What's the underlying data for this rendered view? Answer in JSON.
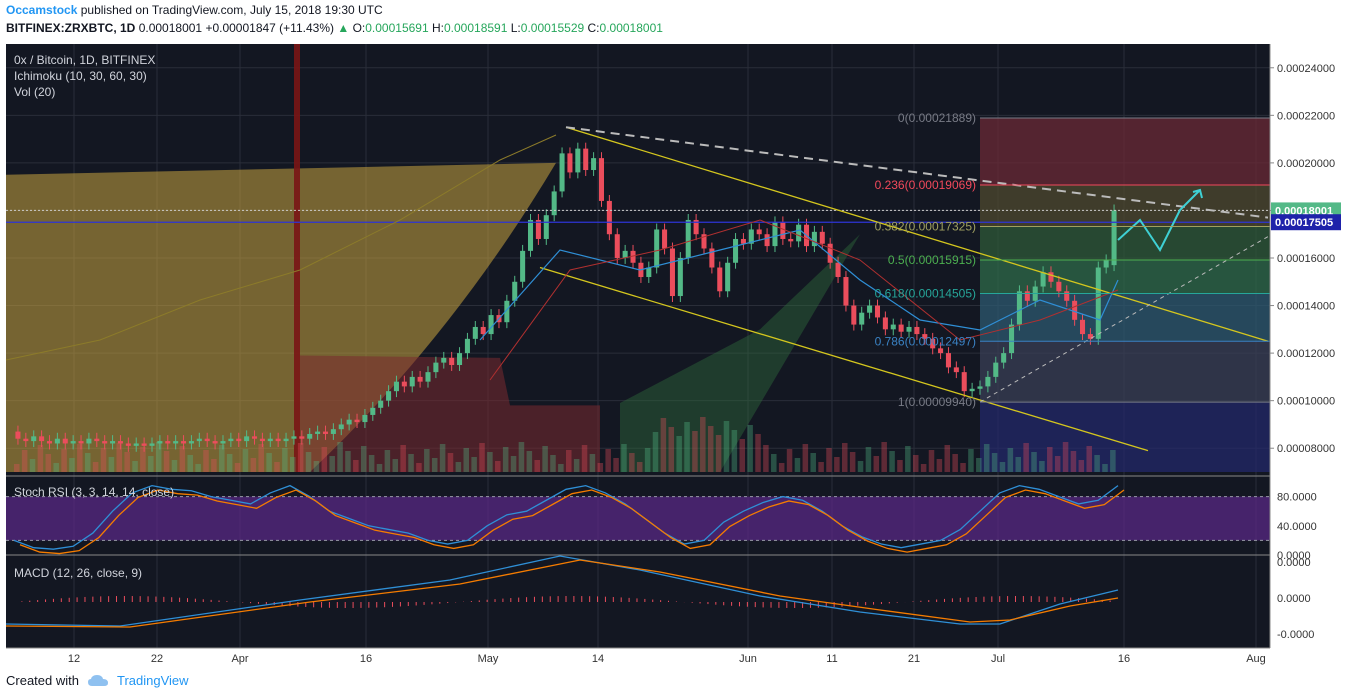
{
  "header": {
    "author": "Occamstock",
    "published_text": "published on TradingView.com, July 15, 2018 19:30 UTC",
    "symbol": "BITFINEX:ZRXBTC, 1D",
    "last": "0.00018001",
    "change": "+0.00001847 (+11.43%)",
    "o_label": "O:",
    "o": "0.00015691",
    "h_label": "H:",
    "h": "0.00018591",
    "l_label": "L:",
    "l": "0.00015529",
    "c_label": "C:",
    "c": "0.00018001"
  },
  "legend": {
    "line1": "0x / Bitcoin, 1D, BITFINEX",
    "line2": "Ichimoku (10, 30, 60, 30)",
    "line3": "Vol (20)",
    "stoch": "Stoch RSI (3, 3, 14, 14, close)",
    "macd": "MACD (12, 26, close, 9)"
  },
  "footer": {
    "created_with": "Created with",
    "brand": "TradingView"
  },
  "colors": {
    "bg": "#131722",
    "grid": "#2a2e39",
    "up": "#53b987",
    "down": "#eb4d5c",
    "fib_red": "#f2495b",
    "fib_green": "#26a65b"
  },
  "chart_data": {
    "type": "candlestick",
    "price_axis": {
      "ticks": [
        "0.00024000",
        "0.00022000",
        "0.00020000",
        "0.00018000",
        "0.00016000",
        "0.00014000",
        "0.00012000",
        "0.00010000",
        "0.00008000"
      ],
      "range": [
        7e-05,
        0.00025
      ]
    },
    "price_tags": [
      {
        "value": "0.00018001",
        "price": 0.00018001,
        "color": "#53b987"
      },
      {
        "value": "0.00017505",
        "price": 0.00017505,
        "color": "#1e22aa"
      }
    ],
    "x_labels": [
      "12",
      "22",
      "Apr",
      "16",
      "May",
      "14",
      "Jun",
      "11",
      "21",
      "Jul",
      "16",
      "Aug"
    ],
    "fib_levels": [
      {
        "label": "0(0.00021889)",
        "price": 0.00021889,
        "color": "#787b86"
      },
      {
        "label": "0.236(0.00019069)",
        "price": 0.00019069,
        "color": "#f2495b"
      },
      {
        "label": "0.382(0.00017325)",
        "price": 0.00017325,
        "color": "#a0a060"
      },
      {
        "label": "0.5(0.00015915)",
        "price": 0.00015915,
        "color": "#4caf50"
      },
      {
        "label": "0.618(0.00014505)",
        "price": 0.00014505,
        "color": "#26a69a"
      },
      {
        "label": "0.786(0.00012497)",
        "price": 0.00012497,
        "color": "#3a82c4"
      },
      {
        "label": "1(0.00009940)",
        "price": 9.94e-05,
        "color": "#787b86"
      }
    ],
    "candles": [
      [
        8.7e-05,
        8.4e-05
      ],
      [
        8.4e-05,
        8.3e-05
      ],
      [
        8.3e-05,
        8.5e-05
      ],
      [
        8.5e-05,
        8.3e-05
      ],
      [
        8.3e-05,
        8.2e-05
      ],
      [
        8.2e-05,
        8.4e-05
      ],
      [
        8.4e-05,
        8.2e-05
      ],
      [
        8.2e-05,
        8.3e-05
      ],
      [
        8.3e-05,
        8.2e-05
      ],
      [
        8.2e-05,
        8.4e-05
      ],
      [
        8.4e-05,
        8.3e-05
      ],
      [
        8.3e-05,
        8.2e-05
      ],
      [
        8.2e-05,
        8.3e-05
      ],
      [
        8.3e-05,
        8.2e-05
      ],
      [
        8.2e-05,
        8.1e-05
      ],
      [
        8.1e-05,
        8.2e-05
      ],
      [
        8.2e-05,
        8.1e-05
      ],
      [
        8.1e-05,
        8.2e-05
      ],
      [
        8.2e-05,
        8.3e-05
      ],
      [
        8.3e-05,
        8.2e-05
      ],
      [
        8.2e-05,
        8.3e-05
      ],
      [
        8.3e-05,
        8.2e-05
      ],
      [
        8.2e-05,
        8.3e-05
      ],
      [
        8.3e-05,
        8.4e-05
      ],
      [
        8.4e-05,
        8.3e-05
      ],
      [
        8.3e-05,
        8.2e-05
      ],
      [
        8.2e-05,
        8.3e-05
      ],
      [
        8.3e-05,
        8.4e-05
      ],
      [
        8.4e-05,
        8.3e-05
      ],
      [
        8.3e-05,
        8.5e-05
      ],
      [
        8.5e-05,
        8.4e-05
      ],
      [
        8.4e-05,
        8.3e-05
      ],
      [
        8.3e-05,
        8.4e-05
      ],
      [
        8.4e-05,
        8.3e-05
      ],
      [
        8.3e-05,
        8.4e-05
      ],
      [
        8.4e-05,
        8.5e-05
      ],
      [
        8.5e-05,
        8.4e-05
      ],
      [
        8.4e-05,
        8.6e-05
      ],
      [
        8.6e-05,
        8.7e-05
      ],
      [
        8.7e-05,
        8.6e-05
      ],
      [
        8.6e-05,
        8.8e-05
      ],
      [
        8.8e-05,
        9e-05
      ],
      [
        9e-05,
        9.2e-05
      ],
      [
        9.2e-05,
        9.1e-05
      ],
      [
        9.1e-05,
        9.4e-05
      ],
      [
        9.4e-05,
        9.7e-05
      ],
      [
        9.7e-05,
        0.0001
      ],
      [
        0.0001,
        0.000104
      ],
      [
        0.000104,
        0.000108
      ],
      [
        0.000108,
        0.000106
      ],
      [
        0.000106,
        0.00011
      ],
      [
        0.00011,
        0.000108
      ],
      [
        0.000108,
        0.000112
      ],
      [
        0.000112,
        0.000116
      ],
      [
        0.000116,
        0.000118
      ],
      [
        0.000118,
        0.000115
      ],
      [
        0.000115,
        0.00012
      ],
      [
        0.00012,
        0.000126
      ],
      [
        0.000126,
        0.000131
      ],
      [
        0.000131,
        0.000128
      ],
      [
        0.000128,
        0.000136
      ],
      [
        0.000136,
        0.000133
      ],
      [
        0.000133,
        0.000142
      ],
      [
        0.000142,
        0.00015
      ],
      [
        0.00015,
        0.000163
      ],
      [
        0.000163,
        0.000176
      ],
      [
        0.000176,
        0.000168
      ],
      [
        0.000168,
        0.000178
      ],
      [
        0.000178,
        0.000188
      ],
      [
        0.000188,
        0.000204
      ],
      [
        0.000204,
        0.000196
      ],
      [
        0.000196,
        0.000206
      ],
      [
        0.000206,
        0.000197
      ],
      [
        0.000197,
        0.000202
      ],
      [
        0.000202,
        0.000184
      ],
      [
        0.000184,
        0.00017
      ],
      [
        0.00017,
        0.00016
      ],
      [
        0.00016,
        0.000163
      ],
      [
        0.000163,
        0.000158
      ],
      [
        0.000158,
        0.000152
      ],
      [
        0.000152,
        0.000156
      ],
      [
        0.000156,
        0.000172
      ],
      [
        0.000172,
        0.000164
      ],
      [
        0.000164,
        0.000144
      ],
      [
        0.000144,
        0.00016
      ],
      [
        0.00016,
        0.000176
      ],
      [
        0.000176,
        0.00017
      ],
      [
        0.00017,
        0.000164
      ],
      [
        0.000164,
        0.000156
      ],
      [
        0.000156,
        0.000146
      ],
      [
        0.000146,
        0.000158
      ],
      [
        0.000158,
        0.000168
      ],
      [
        0.000168,
        0.000166
      ],
      [
        0.000166,
        0.000172
      ],
      [
        0.000172,
        0.00017
      ],
      [
        0.00017,
        0.000165
      ],
      [
        0.000165,
        0.000175
      ],
      [
        0.000175,
        0.000168
      ],
      [
        0.000168,
        0.000167
      ],
      [
        0.000167,
        0.000174
      ],
      [
        0.000174,
        0.000165
      ],
      [
        0.000165,
        0.000171
      ],
      [
        0.000171,
        0.000166
      ],
      [
        0.000166,
        0.000158
      ],
      [
        0.000158,
        0.000152
      ],
      [
        0.000152,
        0.00014
      ],
      [
        0.00014,
        0.000132
      ],
      [
        0.000132,
        0.000137
      ],
      [
        0.000137,
        0.00014
      ],
      [
        0.00014,
        0.000135
      ],
      [
        0.000135,
        0.00013
      ],
      [
        0.00013,
        0.000132
      ],
      [
        0.000132,
        0.000129
      ],
      [
        0.000129,
        0.000131
      ],
      [
        0.000131,
        0.000128
      ],
      [
        0.000128,
        0.000126
      ],
      [
        0.000126,
        0.000122
      ],
      [
        0.000122,
        0.00012
      ],
      [
        0.00012,
        0.000114
      ],
      [
        0.000114,
        0.000112
      ],
      [
        0.000112,
        0.000104
      ],
      [
        0.000104,
        0.000105
      ],
      [
        0.000105,
        0.000106
      ],
      [
        0.000106,
        0.00011
      ],
      [
        0.00011,
        0.000116
      ],
      [
        0.000116,
        0.00012
      ],
      [
        0.00012,
        0.000132
      ],
      [
        0.000132,
        0.000146
      ],
      [
        0.000146,
        0.000142
      ],
      [
        0.000142,
        0.000148
      ],
      [
        0.000148,
        0.000154
      ],
      [
        0.000154,
        0.00015
      ],
      [
        0.00015,
        0.000146
      ],
      [
        0.000146,
        0.000142
      ],
      [
        0.000142,
        0.000134
      ],
      [
        0.000134,
        0.000128
      ],
      [
        0.000128,
        0.000126
      ],
      [
        0.000126,
        0.000156
      ],
      [
        0.000156,
        0.000159
      ],
      [
        0.000157,
        0.00018
      ]
    ],
    "stoch_rsi": {
      "axis": [
        "80.0000",
        "40.0000",
        "0.0000"
      ],
      "k": [
        20,
        10,
        8,
        12,
        30,
        60,
        85,
        95,
        90,
        88,
        80,
        75,
        70,
        85,
        95,
        80,
        60,
        50,
        40,
        35,
        30,
        20,
        15,
        20,
        40,
        55,
        60,
        75,
        90,
        95,
        85,
        70,
        50,
        30,
        15,
        20,
        45,
        60,
        72,
        80,
        75,
        60,
        40,
        25,
        15,
        10,
        15,
        20,
        35,
        60,
        85,
        95,
        90,
        80,
        70,
        75,
        95
      ]
    },
    "macd": {
      "axis": [
        "0.0000",
        "0.0000",
        "-0.0000"
      ]
    },
    "annotation": {
      "arrow_points": [
        [
          1118,
          200
        ],
        [
          1140,
          180
        ],
        [
          1160,
          210
        ],
        [
          1180,
          170
        ],
        [
          1200,
          150
        ]
      ]
    }
  }
}
